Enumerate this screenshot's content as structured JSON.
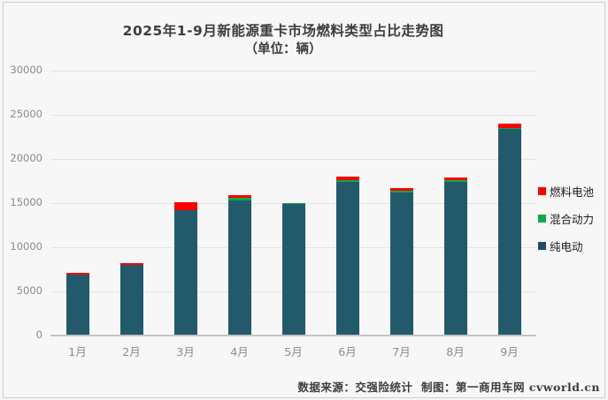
{
  "title": {
    "line1": "2025年1-9月新能源重卡市场燃料类型占比走势图",
    "line2": "（单位：辆）"
  },
  "footer": {
    "text": "数据来源：交强险统计  制图：第一商用车网 cvworld.cn"
  },
  "colors": {
    "background": "#f7f7f7",
    "frame_border": "#cfcfcf",
    "gridline": "#e3e3e3",
    "axis_line": "#c3c3c3",
    "tick_label": "#8a8a8a",
    "title_text": "#3d3d3d",
    "fuel_cell_red": "#fc0000",
    "hybrid_green": "#0fa74f",
    "bev_teal": "#235a6b"
  },
  "legend": {
    "items": [
      {
        "key": "fuel-cell",
        "label": "燃料电池",
        "color": "#fc0000"
      },
      {
        "key": "hybrid",
        "label": "混合动力",
        "color": "#0fa74f"
      },
      {
        "key": "bev",
        "label": "纯电动",
        "color": "#1d4f62"
      }
    ]
  },
  "chart_data": {
    "type": "bar",
    "stacked": true,
    "title": "2025年1-9月新能源重卡市场燃料类型占比走势图（单位：辆）",
    "categories": [
      "1月",
      "2月",
      "3月",
      "4月",
      "5月",
      "6月",
      "7月",
      "8月",
      "9月"
    ],
    "series": [
      {
        "key": "bev",
        "name": "纯电动",
        "color": "#235a6b",
        "values": [
          6900,
          8000,
          14200,
          15300,
          14900,
          17450,
          16250,
          17400,
          23400
        ]
      },
      {
        "key": "hybrid",
        "name": "混合动力",
        "color": "#0fa74f",
        "values": [
          20,
          30,
          30,
          320,
          60,
          130,
          170,
          170,
          100
        ]
      },
      {
        "key": "fuel-cell",
        "name": "燃料电池",
        "color": "#fc0000",
        "values": [
          150,
          130,
          900,
          300,
          90,
          420,
          330,
          330,
          550
        ]
      }
    ],
    "totals": [
      7070,
      8160,
      15130,
      15920,
      15050,
      18000,
      16750,
      17900,
      24050
    ],
    "xlabel": "",
    "ylabel": "",
    "ylim": [
      0,
      30000
    ],
    "yticks": [
      0,
      5000,
      10000,
      15000,
      20000,
      25000,
      30000
    ],
    "grid": true,
    "legend_position": "right"
  }
}
